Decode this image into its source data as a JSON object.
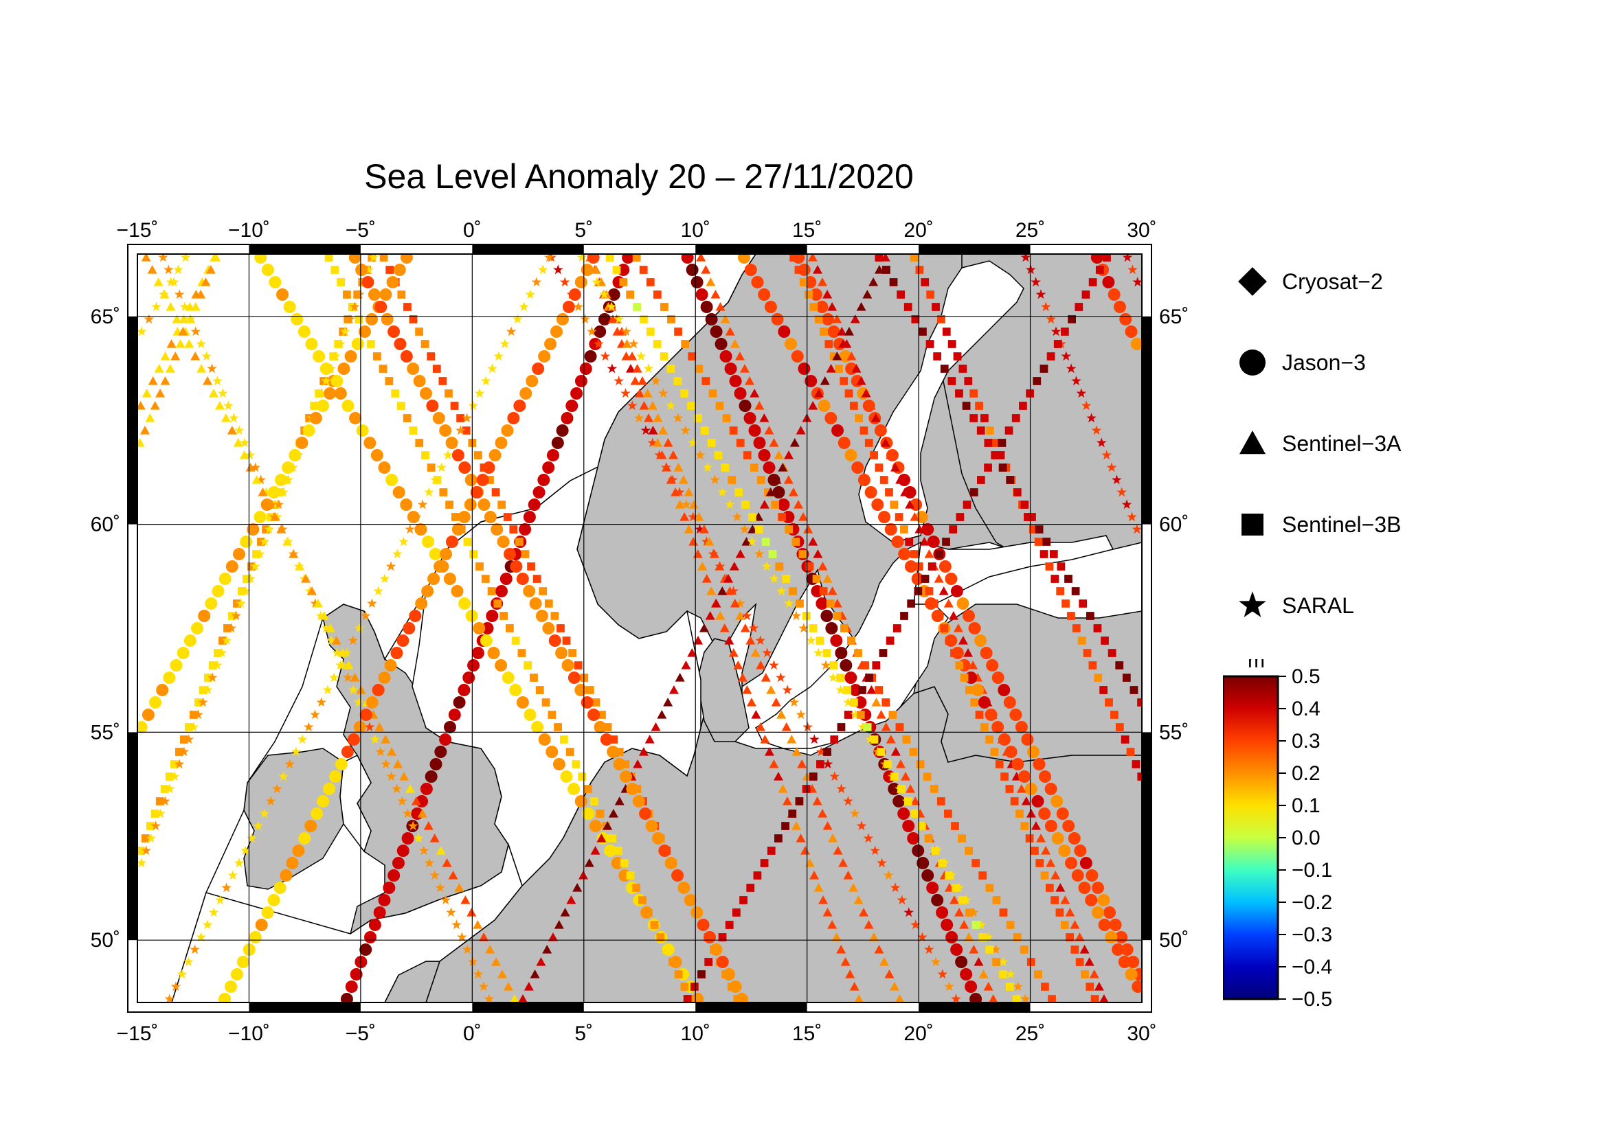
{
  "title": "Sea Level Anomaly 20 – 27/11/2020",
  "map": {
    "lon_range": [
      -15,
      30
    ],
    "lat_range": [
      48.5,
      66.5
    ],
    "lon_ticks": [
      -15,
      -10,
      -5,
      0,
      5,
      10,
      15,
      20,
      25,
      30
    ],
    "lat_ticks": [
      50,
      55,
      60,
      65
    ],
    "lon_tick_labels": [
      "−15˚",
      "−10˚",
      "−5˚",
      "0˚",
      "5˚",
      "10˚",
      "15˚",
      "20˚",
      "25˚",
      "30˚"
    ],
    "lat_tick_labels": [
      "50˚",
      "55˚",
      "60˚",
      "65˚"
    ],
    "land_color": "#bebebe",
    "sea_color": "#ffffff",
    "grid": true
  },
  "legend": {
    "items": [
      {
        "label": "Cryosat−2",
        "symbol": "diamond-icon"
      },
      {
        "label": "Jason−3",
        "symbol": "circle-icon"
      },
      {
        "label": "Sentinel−3A",
        "symbol": "triangle-icon"
      },
      {
        "label": "Sentinel−3B",
        "symbol": "square-icon"
      },
      {
        "label": "SARAL",
        "symbol": "star-icon"
      }
    ]
  },
  "colorbar": {
    "unit": "m",
    "min": -0.5,
    "max": 0.5,
    "tick_labels": [
      "0.5",
      "0.4",
      "0.3",
      "0.2",
      "0.1",
      "0.0",
      "−0.1",
      "−0.2",
      "−0.3",
      "−0.4",
      "−0.5"
    ],
    "colors": [
      "#7a0000",
      "#d00000",
      "#ff4000",
      "#ff9000",
      "#ffe000",
      "#c8ff40",
      "#40ffc0",
      "#00c0ff",
      "#0040ff",
      "#0000c0",
      "#00007a"
    ]
  }
}
